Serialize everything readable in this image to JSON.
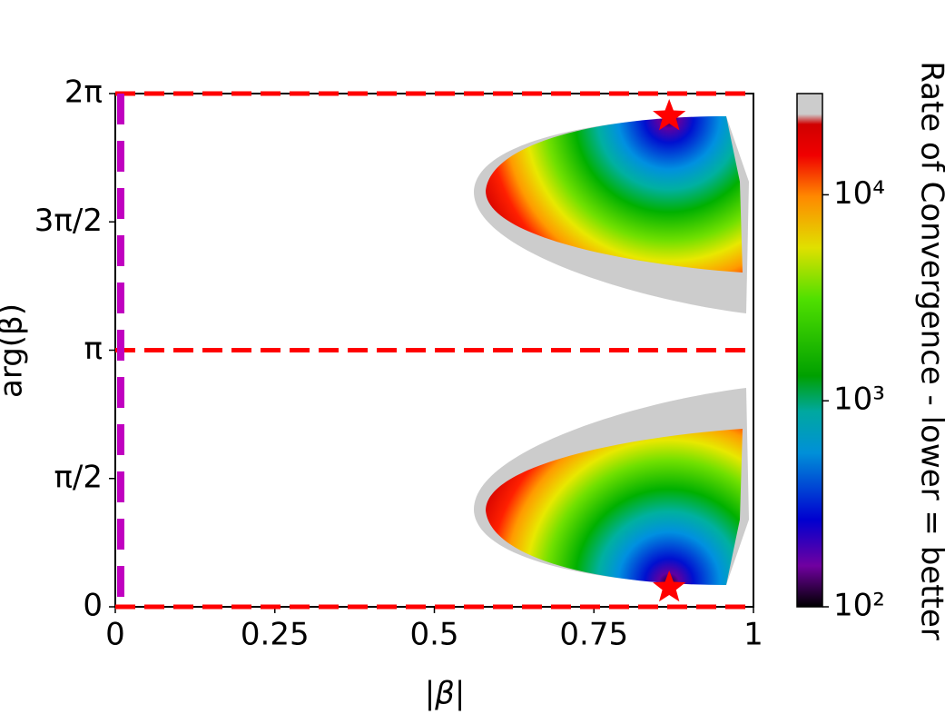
{
  "chart_data": {
    "type": "heatmap",
    "xlabel": "|β|",
    "ylabel": "arg(β)",
    "colorbar_label": "Rate of Convergence - lower = better",
    "xlim": [
      0,
      1
    ],
    "ylim": [
      0,
      6.2832
    ],
    "xticks": [
      0,
      0.25,
      0.5,
      0.75,
      1
    ],
    "yticks": [
      0,
      {
        "value": 1.5708,
        "label": "π/2"
      },
      {
        "value": 3.1416,
        "label": "π"
      },
      {
        "value": 4.7124,
        "label": "3π/2"
      },
      {
        "value": 6.2832,
        "label": "2π"
      }
    ],
    "clim": [
      100,
      31000
    ],
    "cscale": "log",
    "cticks": [
      {
        "value": 100,
        "label": "10²"
      },
      {
        "value": 1000,
        "label": "10³"
      },
      {
        "value": 10000,
        "label": "10⁴"
      }
    ],
    "hlines": {
      "values": [
        0,
        3.1416,
        6.2832
      ],
      "color": "#ff0000"
    },
    "vlines": {
      "values": [
        0
      ],
      "color": "#c000c0"
    },
    "markers": {
      "x": [
        0.868,
        0.868
      ],
      "y": [
        0.234,
        6.005
      ],
      "color": "#ff0000"
    }
  }
}
